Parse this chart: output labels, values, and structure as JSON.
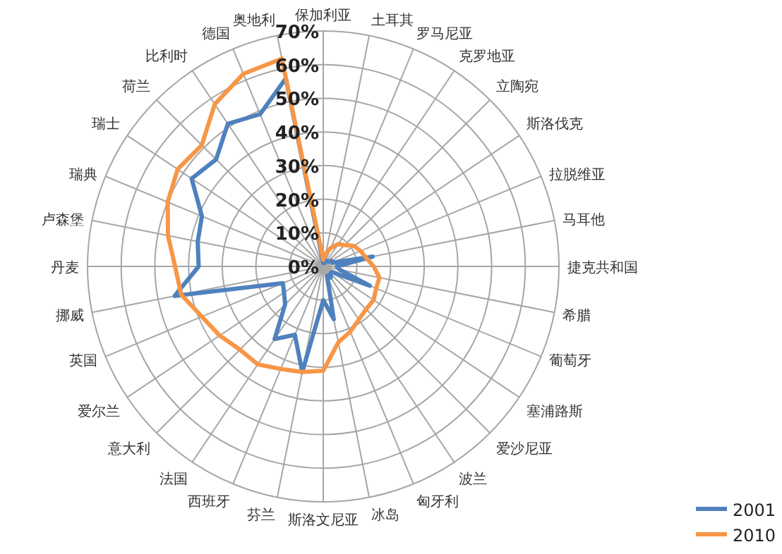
{
  "chart_data": {
    "type": "radar",
    "categories": [
      "保加利亚",
      "土耳其",
      "罗马尼亚",
      "克罗地亚",
      "立陶宛",
      "斯洛伐克",
      "拉脱维亚",
      "马耳他",
      "捷克共和国",
      "希腊",
      "葡萄牙",
      "塞浦路斯",
      "爱沙尼亚",
      "波兰",
      "匈牙利",
      "冰岛",
      "斯洛文尼亚",
      "芬兰",
      "西班牙",
      "法国",
      "意大利",
      "爱尔兰",
      "英国",
      "挪威",
      "丹麦",
      "卢森堡",
      "瑞典",
      "瑞士",
      "荷兰",
      "比利时",
      "德国",
      "奥地利"
    ],
    "series": [
      {
        "name": "2001",
        "color": "#4f81bd",
        "values": [
          1,
          1,
          2,
          2,
          2,
          3,
          3,
          15,
          4,
          5,
          15,
          3,
          3,
          4,
          3,
          16,
          10,
          32,
          22,
          26,
          16,
          14,
          13,
          45,
          37,
          38,
          39,
          47,
          45,
          51,
          49,
          57
        ]
      },
      {
        "name": "2010",
        "color": "#f79646",
        "values": [
          2,
          4,
          6,
          8,
          9,
          11,
          12,
          13,
          15,
          17,
          17,
          18,
          18,
          19,
          21,
          23,
          31,
          32,
          33,
          35,
          35,
          37,
          39,
          43,
          44,
          47,
          50,
          52,
          51,
          58,
          62,
          63
        ]
      }
    ],
    "ylim": [
      0,
      70
    ],
    "yticks": [
      {
        "value": 0,
        "label": "0%"
      },
      {
        "value": 10,
        "label": "10%"
      },
      {
        "value": 20,
        "label": "20%"
      },
      {
        "value": 30,
        "label": "30%"
      },
      {
        "value": 40,
        "label": "40%"
      },
      {
        "value": 50,
        "label": "50%"
      },
      {
        "value": 60,
        "label": "60%"
      },
      {
        "value": 70,
        "label": "70%"
      }
    ],
    "grid": true,
    "legend": "bottom right",
    "line_style": "solid",
    "marker": "none"
  }
}
